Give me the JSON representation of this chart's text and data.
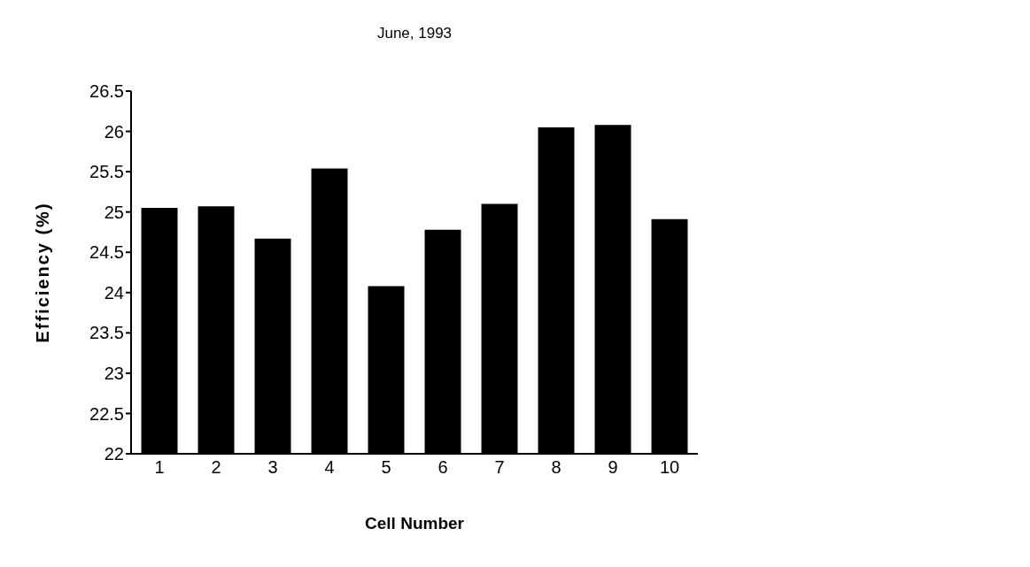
{
  "chart_data": {
    "type": "bar",
    "title": "June, 1993",
    "xlabel": "Cell Number",
    "ylabel": "Efficiency     (%)",
    "categories": [
      "1",
      "2",
      "3",
      "4",
      "5",
      "6",
      "7",
      "8",
      "9",
      "10"
    ],
    "series": [
      {
        "color": "#000000",
        "values": [
          25.05,
          25.07,
          24.67,
          25.54,
          24.08,
          24.78,
          25.1,
          26.05,
          26.08,
          24.91
        ]
      }
    ],
    "ylim": [
      22,
      26.5
    ],
    "yticks": [
      22,
      22.5,
      23,
      23.5,
      24,
      24.5,
      25,
      25.5,
      26,
      26.5
    ],
    "grid": false,
    "legend": false
  }
}
